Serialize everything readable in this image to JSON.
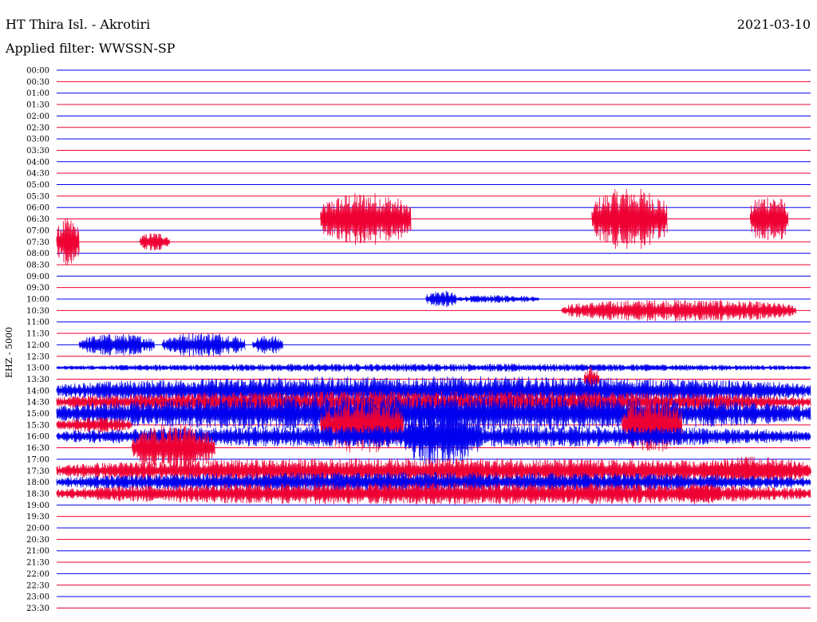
{
  "header": {
    "station": "HT Thira Isl. - Akrotiri",
    "date": "2021-03-10",
    "filter": "Applied filter: WWSSN-SP"
  },
  "colors": {
    "line_even": "#0000ee",
    "line_odd": "#ee0033"
  },
  "chart_data": {
    "type": "helicorder",
    "y_tick_labels": [
      "00:00",
      "00:30",
      "01:00",
      "01:30",
      "02:00",
      "02:30",
      "03:00",
      "03:30",
      "04:00",
      "04:30",
      "05:00",
      "05:30",
      "06:00",
      "06:30",
      "07:00",
      "07:30",
      "08:00",
      "08:30",
      "09:00",
      "09:30",
      "10:00",
      "10:30",
      "11:00",
      "11:30",
      "12:00",
      "12:30",
      "13:00",
      "13:30",
      "14:00",
      "14:30",
      "15:00",
      "15:30",
      "16:00",
      "16:30",
      "17:00",
      "17:30",
      "18:00",
      "18:30",
      "19:00",
      "19:30",
      "20:00",
      "20:30",
      "21:00",
      "21:30",
      "22:00",
      "22:30",
      "23:00",
      "23:30"
    ],
    "y_label": "EHZ - 5000",
    "trace_minutes": 30,
    "grid": false,
    "bursts": [
      {
        "row": 13,
        "start": 0.35,
        "end": 0.47,
        "amp": 34
      },
      {
        "row": 13,
        "start": 0.71,
        "end": 0.81,
        "amp": 40
      },
      {
        "row": 13,
        "start": 0.92,
        "end": 0.97,
        "amp": 32
      },
      {
        "row": 15,
        "start": 0.0,
        "end": 0.03,
        "amp": 30
      },
      {
        "row": 15,
        "start": 0.11,
        "end": 0.15,
        "amp": 12
      },
      {
        "row": 20,
        "start": 0.49,
        "end": 0.53,
        "amp": 11
      },
      {
        "row": 20,
        "start": 0.53,
        "end": 0.64,
        "amp": 5
      },
      {
        "row": 21,
        "start": 0.67,
        "end": 0.98,
        "amp": 14
      },
      {
        "row": 24,
        "start": 0.03,
        "end": 0.13,
        "amp": 14
      },
      {
        "row": 24,
        "start": 0.14,
        "end": 0.25,
        "amp": 16
      },
      {
        "row": 24,
        "start": 0.26,
        "end": 0.3,
        "amp": 12
      },
      {
        "row": 26,
        "start": 0.0,
        "end": 1.0,
        "amp": 5
      },
      {
        "row": 27,
        "start": 0.7,
        "end": 0.72,
        "amp": 16
      },
      {
        "row": 28,
        "start": 0.0,
        "end": 1.0,
        "amp": 18
      },
      {
        "row": 29,
        "start": 0.0,
        "end": 1.0,
        "amp": 14
      },
      {
        "row": 30,
        "start": 0.0,
        "end": 1.0,
        "amp": 22
      },
      {
        "row": 31,
        "start": 0.0,
        "end": 0.1,
        "amp": 10
      },
      {
        "row": 31,
        "start": 0.35,
        "end": 0.46,
        "amp": 36
      },
      {
        "row": 31,
        "start": 0.75,
        "end": 0.83,
        "amp": 36
      },
      {
        "row": 32,
        "start": 0.0,
        "end": 1.0,
        "amp": 14
      },
      {
        "row": 32,
        "start": 0.46,
        "end": 0.56,
        "amp": 38
      },
      {
        "row": 33,
        "start": 0.1,
        "end": 0.21,
        "amp": 30
      },
      {
        "row": 35,
        "start": 0.0,
        "end": 1.0,
        "amp": 16
      },
      {
        "row": 35,
        "start": 0.85,
        "end": 1.0,
        "amp": 18
      },
      {
        "row": 36,
        "start": 0.0,
        "end": 1.0,
        "amp": 13
      },
      {
        "row": 37,
        "start": 0.0,
        "end": 1.0,
        "amp": 14
      },
      {
        "row": 37,
        "start": 0.82,
        "end": 0.88,
        "amp": 14
      }
    ]
  }
}
